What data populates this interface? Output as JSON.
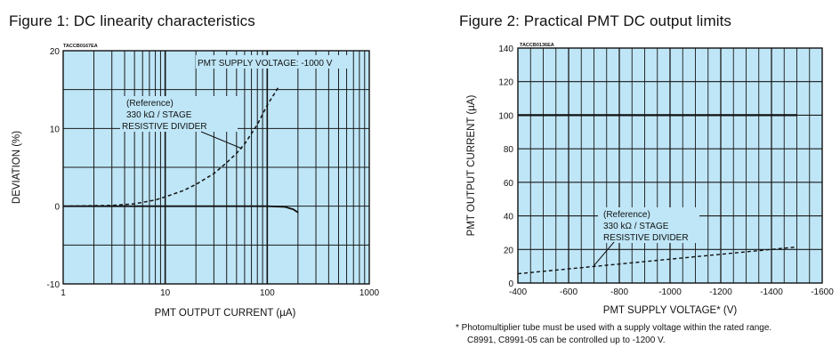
{
  "chart_data": [
    {
      "type": "line",
      "title": "Figure 1: DC linearity characteristics",
      "figure_code": "TACCB0167EA",
      "xlabel": "PMT OUTPUT CURRENT (µA)",
      "ylabel": "DEVIATION (%)",
      "xscale": "log",
      "xlim": [
        1,
        1000
      ],
      "ylim": [
        -10,
        20
      ],
      "xticks": [
        "1",
        "10",
        "100",
        "1000"
      ],
      "yticks": [
        "20",
        "10",
        "0",
        "-10"
      ],
      "grid": true,
      "background": "#bfe6f7",
      "annotations": [
        "PMT SUPPLY VOLTAGE: -1000 V",
        "(Reference)",
        "330 kΩ / STAGE",
        "RESISTIVE DIVIDER"
      ],
      "series": [
        {
          "name": "(Reference) 330 kΩ / STAGE RESISTIVE DIVIDER",
          "style": "dashed",
          "x": [
            1,
            3,
            5,
            8,
            10,
            15,
            20,
            30,
            40,
            50,
            60,
            80,
            100,
            130
          ],
          "y": [
            0,
            0.1,
            0.3,
            0.8,
            1.2,
            2.0,
            2.8,
            4.2,
            5.6,
            6.8,
            8.0,
            10.5,
            13,
            15.4
          ]
        },
        {
          "name": "",
          "style": "solid",
          "x": [
            1,
            10,
            50,
            100,
            150,
            180,
            200
          ],
          "y": [
            0,
            0,
            0,
            0,
            -0.1,
            -0.4,
            -0.8
          ]
        }
      ]
    },
    {
      "type": "line",
      "title": "Figure 2: Practical PMT DC output limits",
      "figure_code": "TACCB0136EA",
      "xlabel": "PMT SUPPLY VOLTAGE* (V)",
      "ylabel": "PMT OUTPUT CURRENT (µA)",
      "xlim": [
        -400,
        -1600
      ],
      "ylim": [
        0,
        140
      ],
      "xticks": [
        "-400",
        "-600",
        "-800",
        "-1000",
        "-1200",
        "-1400",
        "-1600"
      ],
      "yticks": [
        "140",
        "120",
        "100",
        "80",
        "60",
        "40",
        "20",
        "0"
      ],
      "grid": true,
      "background": "#bfe6f7",
      "annotations": [
        "(Reference)",
        "330 kΩ / STAGE",
        "RESISTIVE DIVIDER"
      ],
      "series": [
        {
          "name": "",
          "style": "solid",
          "x": [
            -400,
            -1500
          ],
          "y": [
            100,
            100
          ]
        },
        {
          "name": "(Reference) 330 kΩ / STAGE RESISTIVE DIVIDER",
          "style": "dashed",
          "x": [
            -400,
            -1500
          ],
          "y": [
            5.5,
            21.5
          ]
        }
      ]
    }
  ],
  "footnote": {
    "line1": "* Photomultiplier tube must be used with a supply voltage within the rated range.",
    "line2": "C8991, C8991-05 can be controlled up to -1200 V."
  }
}
